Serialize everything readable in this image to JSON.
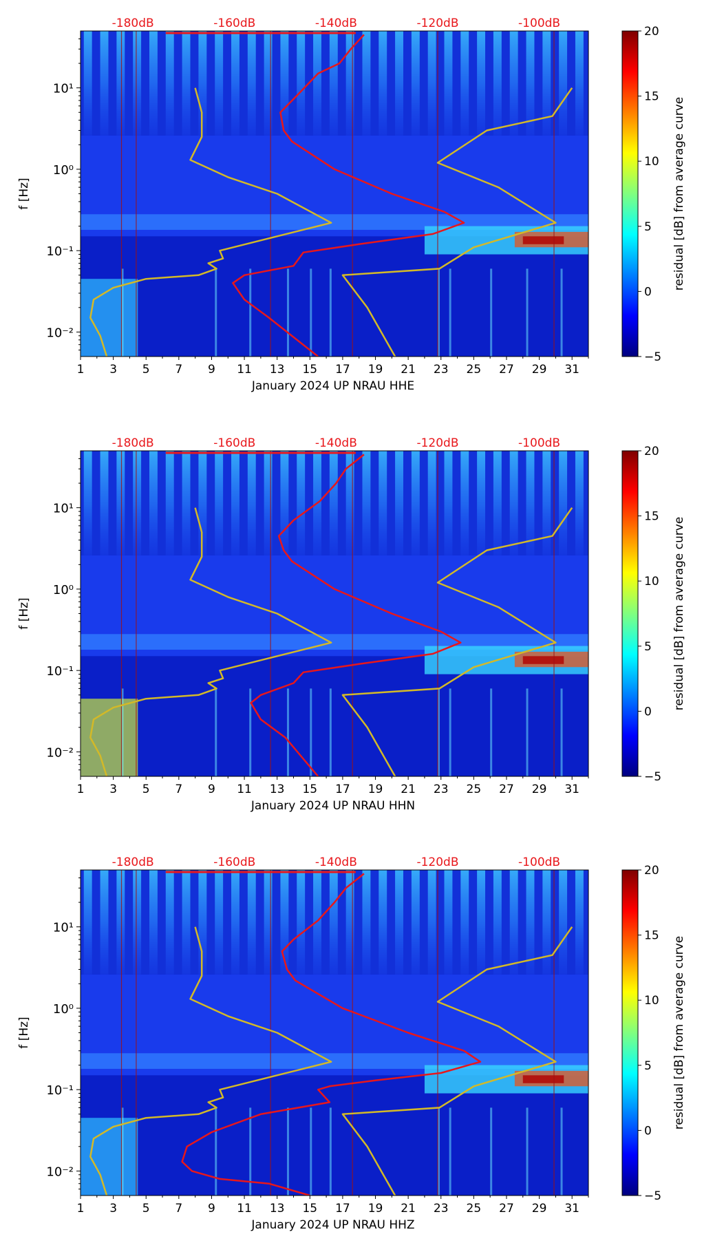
{
  "chart_data": [
    {
      "type": "heatmap",
      "title": "January 2024 UP NRAU  HHE",
      "xlabel": "January 2024 UP NRAU  HHE",
      "ylabel": "f [Hz]",
      "x_ticks": [
        "1",
        "3",
        "5",
        "7",
        "9",
        "11",
        "13",
        "15",
        "17",
        "19",
        "21",
        "23",
        "25",
        "27",
        "29",
        "31"
      ],
      "xlim": [
        1,
        32
      ],
      "y_ticks": [
        {
          "label": "10⁻²",
          "value": 0.01
        },
        {
          "label": "10⁻¹",
          "value": 0.1
        },
        {
          "label": "10⁰",
          "value": 1
        },
        {
          "label": "10¹",
          "value": 10
        }
      ],
      "ylim": [
        0.005,
        50
      ],
      "top_labels": [
        {
          "label": "-180dB",
          "day": 4.2
        },
        {
          "label": "-160dB",
          "day": 10.4
        },
        {
          "label": "-140dB",
          "day": 16.6
        },
        {
          "label": "-120dB",
          "day": 22.8
        },
        {
          "label": "-100dB",
          "day": 29.0
        }
      ],
      "colorbar": {
        "label": "residual [dB] from average curve",
        "ticks": [
          "20",
          "15",
          "10",
          "5",
          "0",
          "−5"
        ],
        "min": -5,
        "max": 20
      },
      "series": [
        {
          "name": "average PSD (red)",
          "color": "#e8171b",
          "points": [
            [
              18.3,
              45
            ],
            [
              17.5,
              30
            ],
            [
              16.8,
              20
            ],
            [
              15.5,
              15
            ],
            [
              14.2,
              8
            ],
            [
              13.2,
              5
            ],
            [
              13.4,
              3
            ],
            [
              13.9,
              2.2
            ],
            [
              16.5,
              1
            ],
            [
              20,
              0.5
            ],
            [
              23.2,
              0.3
            ],
            [
              24.4,
              0.22
            ],
            [
              22.5,
              0.16
            ],
            [
              18,
              0.12
            ],
            [
              14.6,
              0.095
            ],
            [
              14,
              0.065
            ],
            [
              11,
              0.05
            ],
            [
              10.3,
              0.04
            ],
            [
              11,
              0.025
            ],
            [
              12.5,
              0.015
            ],
            [
              15.5,
              0.005
            ]
          ]
        },
        {
          "name": "noise model (yellow, low)",
          "color": "#d3b928",
          "points": [
            [
              8,
              10
            ],
            [
              8.4,
              5
            ],
            [
              8.4,
              2.5
            ],
            [
              7.7,
              1.3
            ],
            [
              10,
              0.8
            ],
            [
              13,
              0.5
            ],
            [
              16.3,
              0.22
            ],
            [
              13,
              0.15
            ],
            [
              9.5,
              0.1
            ],
            [
              9.7,
              0.08
            ],
            [
              8.8,
              0.07
            ],
            [
              9.3,
              0.06
            ],
            [
              8.2,
              0.05
            ],
            [
              5,
              0.045
            ],
            [
              3,
              0.035
            ],
            [
              1.8,
              0.025
            ],
            [
              1.6,
              0.015
            ],
            [
              2.2,
              0.009
            ],
            [
              2.6,
              0.005
            ]
          ]
        },
        {
          "name": "noise model (yellow, high)",
          "color": "#d3b928",
          "points": [
            [
              31,
              10
            ],
            [
              29.8,
              4.5
            ],
            [
              25.8,
              3
            ],
            [
              22.8,
              1.2
            ],
            [
              26.5,
              0.6
            ],
            [
              30,
              0.22
            ],
            [
              25,
              0.11
            ],
            [
              22.9,
              0.06
            ],
            [
              17,
              0.05
            ],
            [
              18.5,
              0.02
            ],
            [
              20.2,
              0.005
            ]
          ]
        }
      ]
    },
    {
      "type": "heatmap",
      "title": "January 2024 UP NRAU  HHN",
      "xlabel": "January 2024 UP NRAU  HHN",
      "ylabel": "f [Hz]",
      "x_ticks": [
        "1",
        "3",
        "5",
        "7",
        "9",
        "11",
        "13",
        "15",
        "17",
        "19",
        "21",
        "23",
        "25",
        "27",
        "29",
        "31"
      ],
      "xlim": [
        1,
        32
      ],
      "y_ticks": [
        {
          "label": "10⁻²",
          "value": 0.01
        },
        {
          "label": "10⁻¹",
          "value": 0.1
        },
        {
          "label": "10⁰",
          "value": 1
        },
        {
          "label": "10¹",
          "value": 10
        }
      ],
      "ylim": [
        0.005,
        50
      ],
      "top_labels": [
        {
          "label": "-180dB",
          "day": 4.2
        },
        {
          "label": "-160dB",
          "day": 10.4
        },
        {
          "label": "-140dB",
          "day": 16.6
        },
        {
          "label": "-120dB",
          "day": 22.8
        },
        {
          "label": "-100dB",
          "day": 29.0
        }
      ],
      "colorbar": {
        "label": "residual [dB] from average curve",
        "ticks": [
          "20",
          "15",
          "10",
          "5",
          "0",
          "−5"
        ],
        "min": -5,
        "max": 20
      },
      "series": [
        {
          "name": "average PSD (red)",
          "color": "#e8171b",
          "points": [
            [
              18.3,
              45
            ],
            [
              17.2,
              30
            ],
            [
              16.6,
              20
            ],
            [
              15.6,
              12
            ],
            [
              14,
              7
            ],
            [
              13.1,
              4.5
            ],
            [
              13.4,
              3
            ],
            [
              13.9,
              2.2
            ],
            [
              16.5,
              1
            ],
            [
              20,
              0.5
            ],
            [
              23,
              0.3
            ],
            [
              24.2,
              0.22
            ],
            [
              22.5,
              0.16
            ],
            [
              18,
              0.12
            ],
            [
              14.6,
              0.095
            ],
            [
              14,
              0.07
            ],
            [
              12,
              0.05
            ],
            [
              11.4,
              0.04
            ],
            [
              12,
              0.025
            ],
            [
              13.5,
              0.015
            ],
            [
              15.5,
              0.005
            ]
          ]
        },
        {
          "name": "noise model (yellow, low)",
          "color": "#d3b928",
          "points": [
            [
              8,
              10
            ],
            [
              8.4,
              5
            ],
            [
              8.4,
              2.5
            ],
            [
              7.7,
              1.3
            ],
            [
              10,
              0.8
            ],
            [
              13,
              0.5
            ],
            [
              16.3,
              0.22
            ],
            [
              13,
              0.15
            ],
            [
              9.5,
              0.1
            ],
            [
              9.7,
              0.08
            ],
            [
              8.8,
              0.07
            ],
            [
              9.3,
              0.06
            ],
            [
              8.2,
              0.05
            ],
            [
              5,
              0.045
            ],
            [
              3,
              0.035
            ],
            [
              1.8,
              0.025
            ],
            [
              1.6,
              0.015
            ],
            [
              2.2,
              0.009
            ],
            [
              2.6,
              0.005
            ]
          ]
        },
        {
          "name": "noise model (yellow, high)",
          "color": "#d3b928",
          "points": [
            [
              31,
              10
            ],
            [
              29.8,
              4.5
            ],
            [
              25.8,
              3
            ],
            [
              22.8,
              1.2
            ],
            [
              26.5,
              0.6
            ],
            [
              30,
              0.22
            ],
            [
              25,
              0.11
            ],
            [
              22.9,
              0.06
            ],
            [
              17,
              0.05
            ],
            [
              18.5,
              0.02
            ],
            [
              20.2,
              0.005
            ]
          ]
        }
      ]
    },
    {
      "type": "heatmap",
      "title": "January 2024 UP NRAU  HHZ",
      "xlabel": "January 2024 UP NRAU  HHZ",
      "ylabel": "f [Hz]",
      "x_ticks": [
        "1",
        "3",
        "5",
        "7",
        "9",
        "11",
        "13",
        "15",
        "17",
        "19",
        "21",
        "23",
        "25",
        "27",
        "29",
        "31"
      ],
      "xlim": [
        1,
        32
      ],
      "y_ticks": [
        {
          "label": "10⁻²",
          "value": 0.01
        },
        {
          "label": "10⁻¹",
          "value": 0.1
        },
        {
          "label": "10⁰",
          "value": 1
        },
        {
          "label": "10¹",
          "value": 10
        }
      ],
      "ylim": [
        0.005,
        50
      ],
      "top_labels": [
        {
          "label": "-180dB",
          "day": 4.2
        },
        {
          "label": "-160dB",
          "day": 10.4
        },
        {
          "label": "-140dB",
          "day": 16.6
        },
        {
          "label": "-120dB",
          "day": 22.8
        },
        {
          "label": "-100dB",
          "day": 29.0
        }
      ],
      "colorbar": {
        "label": "residual [dB] from average curve",
        "ticks": [
          "20",
          "15",
          "10",
          "5",
          "0",
          "−5"
        ],
        "min": -5,
        "max": 20
      },
      "series": [
        {
          "name": "average PSD (red)",
          "color": "#e8171b",
          "points": [
            [
              18.3,
              45
            ],
            [
              17.2,
              30
            ],
            [
              16.5,
              20
            ],
            [
              15.5,
              12
            ],
            [
              14,
              7
            ],
            [
              13.3,
              5
            ],
            [
              13.6,
              3
            ],
            [
              14.1,
              2.2
            ],
            [
              17,
              1
            ],
            [
              21,
              0.5
            ],
            [
              24.4,
              0.3
            ],
            [
              25.4,
              0.22
            ],
            [
              23,
              0.16
            ],
            [
              19,
              0.13
            ],
            [
              16.2,
              0.11
            ],
            [
              15.5,
              0.1
            ],
            [
              16.2,
              0.07
            ],
            [
              12,
              0.05
            ],
            [
              9,
              0.03
            ],
            [
              7.5,
              0.02
            ],
            [
              7.2,
              0.013
            ],
            [
              7.8,
              0.01
            ],
            [
              9.5,
              0.008
            ],
            [
              12.5,
              0.007
            ],
            [
              15,
              0.005
            ]
          ]
        },
        {
          "name": "noise model (yellow, low)",
          "color": "#d3b928",
          "points": [
            [
              8,
              10
            ],
            [
              8.4,
              5
            ],
            [
              8.4,
              2.5
            ],
            [
              7.7,
              1.3
            ],
            [
              10,
              0.8
            ],
            [
              13,
              0.5
            ],
            [
              16.3,
              0.22
            ],
            [
              13,
              0.15
            ],
            [
              9.5,
              0.1
            ],
            [
              9.7,
              0.08
            ],
            [
              8.8,
              0.07
            ],
            [
              9.3,
              0.06
            ],
            [
              8.2,
              0.05
            ],
            [
              5,
              0.045
            ],
            [
              3,
              0.035
            ],
            [
              1.8,
              0.025
            ],
            [
              1.6,
              0.015
            ],
            [
              2.2,
              0.009
            ],
            [
              2.6,
              0.005
            ]
          ]
        },
        {
          "name": "noise model (yellow, high)",
          "color": "#d3b928",
          "points": [
            [
              31,
              10
            ],
            [
              29.8,
              4.5
            ],
            [
              25.8,
              3
            ],
            [
              22.8,
              1.2
            ],
            [
              26.5,
              0.6
            ],
            [
              30,
              0.22
            ],
            [
              25,
              0.11
            ],
            [
              22.9,
              0.06
            ],
            [
              17,
              0.05
            ],
            [
              18.5,
              0.02
            ],
            [
              20.2,
              0.005
            ]
          ]
        }
      ]
    }
  ]
}
